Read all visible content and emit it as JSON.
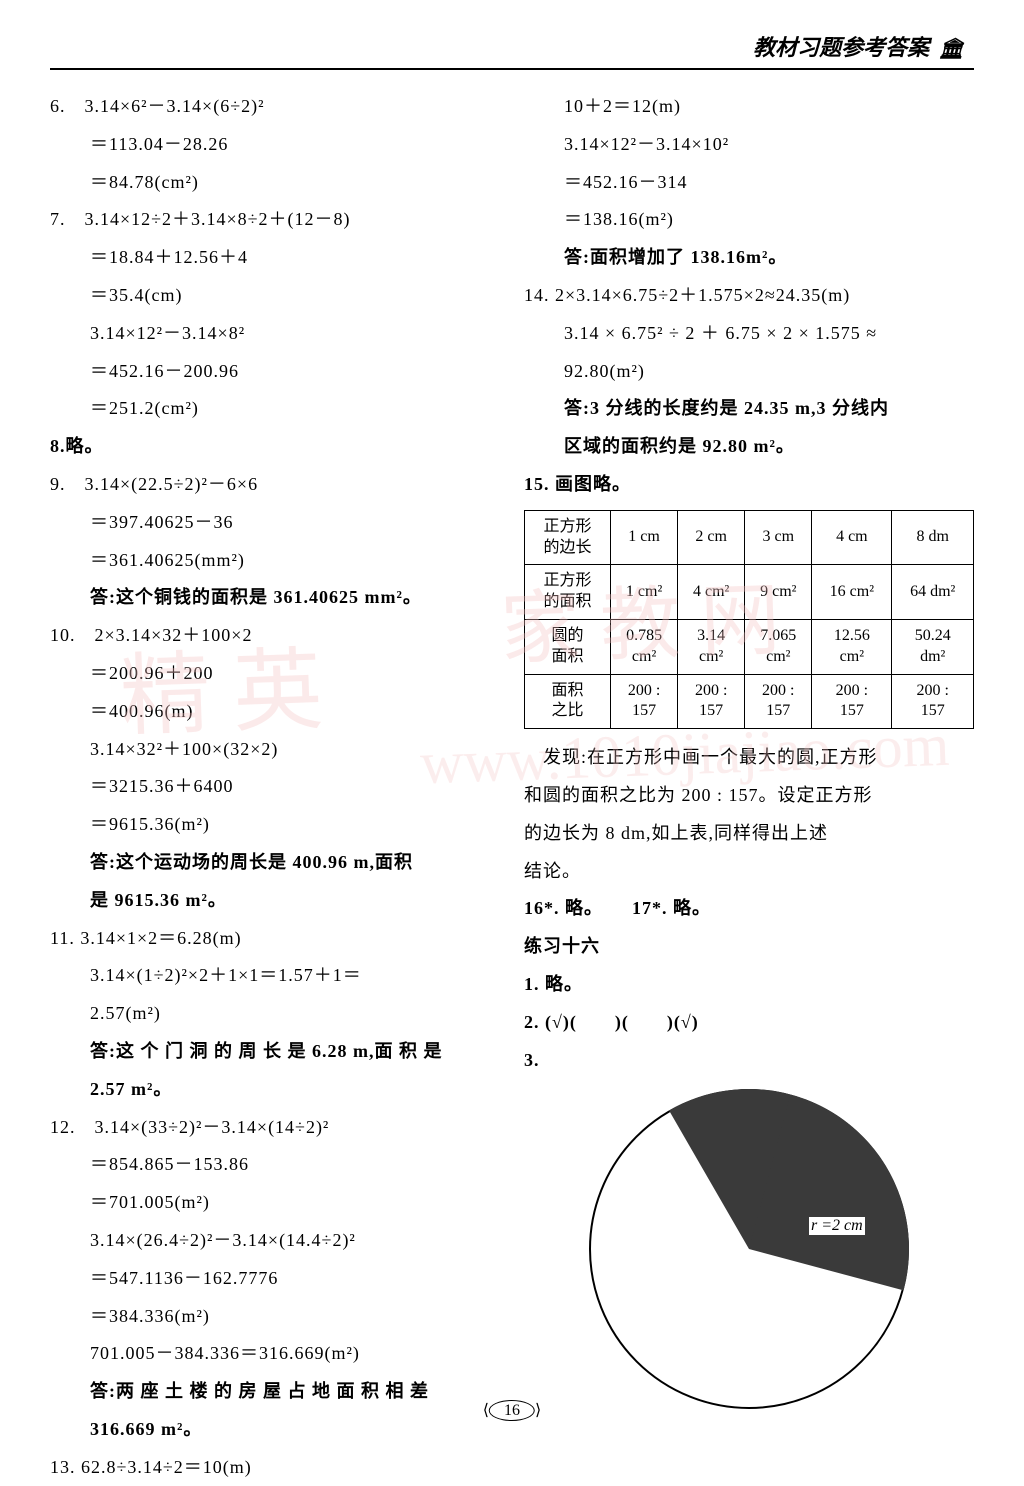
{
  "header": {
    "title": "教材习题参考答案",
    "icon": "🏛"
  },
  "page_number": "16",
  "watermark": {
    "t1": "精",
    "t2": "英",
    "t3": "家",
    "t4": "教",
    "t5": "网",
    "url": "www.1010jiajiao.com"
  },
  "left": {
    "p6_1": "6.　3.14×6²－3.14×(6÷2)²",
    "p6_2": "＝113.04－28.26",
    "p6_3": "＝84.78(cm²)",
    "p7_1": "7.　3.14×12÷2＋3.14×8÷2＋(12－8)",
    "p7_2": "＝18.84＋12.56＋4",
    "p7_3": "＝35.4(cm)",
    "p7_4": "3.14×12²－3.14×8²",
    "p7_5": "＝452.16－200.96",
    "p7_6": "＝251.2(cm²)",
    "p8": "8.略。",
    "p9_1": "9.　3.14×(22.5÷2)²－6×6",
    "p9_2": "＝397.40625－36",
    "p9_3": "＝361.40625(mm²)",
    "p9_ans": "答:这个铜钱的面积是 361.40625 mm²。",
    "p10_1": "10.　2×3.14×32＋100×2",
    "p10_2": "＝200.96＋200",
    "p10_3": "＝400.96(m)",
    "p10_4": "3.14×32²＋100×(32×2)",
    "p10_5": "＝3215.36＋6400",
    "p10_6": "＝9615.36(m²)",
    "p10_ans1": "答:这个运动场的周长是 400.96 m,面积",
    "p10_ans2": "是 9615.36 m²。",
    "p11_1": "11. 3.14×1×2＝6.28(m)",
    "p11_2": "3.14×(1÷2)²×2＋1×1＝1.57＋1＝",
    "p11_3": "2.57(m²)",
    "p11_ans1": "答:这 个 门 洞 的 周 长 是 6.28 m,面 积 是",
    "p11_ans2": "2.57 m²。",
    "p12_1": "12.　3.14×(33÷2)²－3.14×(14÷2)²",
    "p12_2": "＝854.865－153.86",
    "p12_3": "＝701.005(m²)",
    "p12_4": "3.14×(26.4÷2)²－3.14×(14.4÷2)²",
    "p12_5": "＝547.1136－162.7776",
    "p12_6": "＝384.336(m²)",
    "p12_7": "701.005－384.336＝316.669(m²)",
    "p12_ans1": "答:两 座 土 楼 的 房 屋 占 地 面 积 相 差",
    "p12_ans2": "316.669 m²。",
    "p13_1": "13. 62.8÷3.14÷2＝10(m)"
  },
  "right": {
    "p13_2": "10＋2＝12(m)",
    "p13_3": "3.14×12²－3.14×10²",
    "p13_4": "＝452.16－314",
    "p13_5": "＝138.16(m²)",
    "p13_ans": "答:面积增加了 138.16m²。",
    "p14_1": "14. 2×3.14×6.75÷2＋1.575×2≈24.35(m)",
    "p14_2": "3.14 × 6.75² ÷ 2 ＋ 6.75 × 2 × 1.575 ≈",
    "p14_3": "92.80(m²)",
    "p14_ans1": "答:3 分线的长度约是 24.35 m,3 分线内",
    "p14_ans2": "区域的面积约是 92.80 m²。",
    "p15": "15. 画图略。",
    "table": {
      "r1": [
        "正方形\n的边长",
        "1 cm",
        "2 cm",
        "3 cm",
        "4 cm",
        "8 dm"
      ],
      "r2": [
        "正方形\n的面积",
        "1 cm²",
        "4 cm²",
        "9 cm²",
        "16 cm²",
        "64 dm²"
      ],
      "r3": [
        "圆的\n面积",
        "0.785\ncm²",
        "3.14\ncm²",
        "7.065\ncm²",
        "12.56\ncm²",
        "50.24\ndm²"
      ],
      "r4": [
        "面积\n之比",
        "200 :\n157",
        "200 :\n157",
        "200 :\n157",
        "200 :\n157",
        "200 :\n157"
      ]
    },
    "find_1": "　发现:在正方形中画一个最大的圆,正方形",
    "find_2": "和圆的面积之比为 200 : 157。设定正方形",
    "find_3": "的边长为 8 dm,如上表,同样得出上述",
    "find_4": "结论。",
    "p16_17": "16*. 略。　　17*. 略。",
    "ex16": "练习十六",
    "ex1": "1. 略。",
    "ex2": "2. (√)(　　)(　　)(√)",
    "ex3": "3.",
    "r_label": "r =2 cm"
  },
  "circle": {
    "sector_color": "#3a3a3a",
    "sector_deg": 130
  }
}
